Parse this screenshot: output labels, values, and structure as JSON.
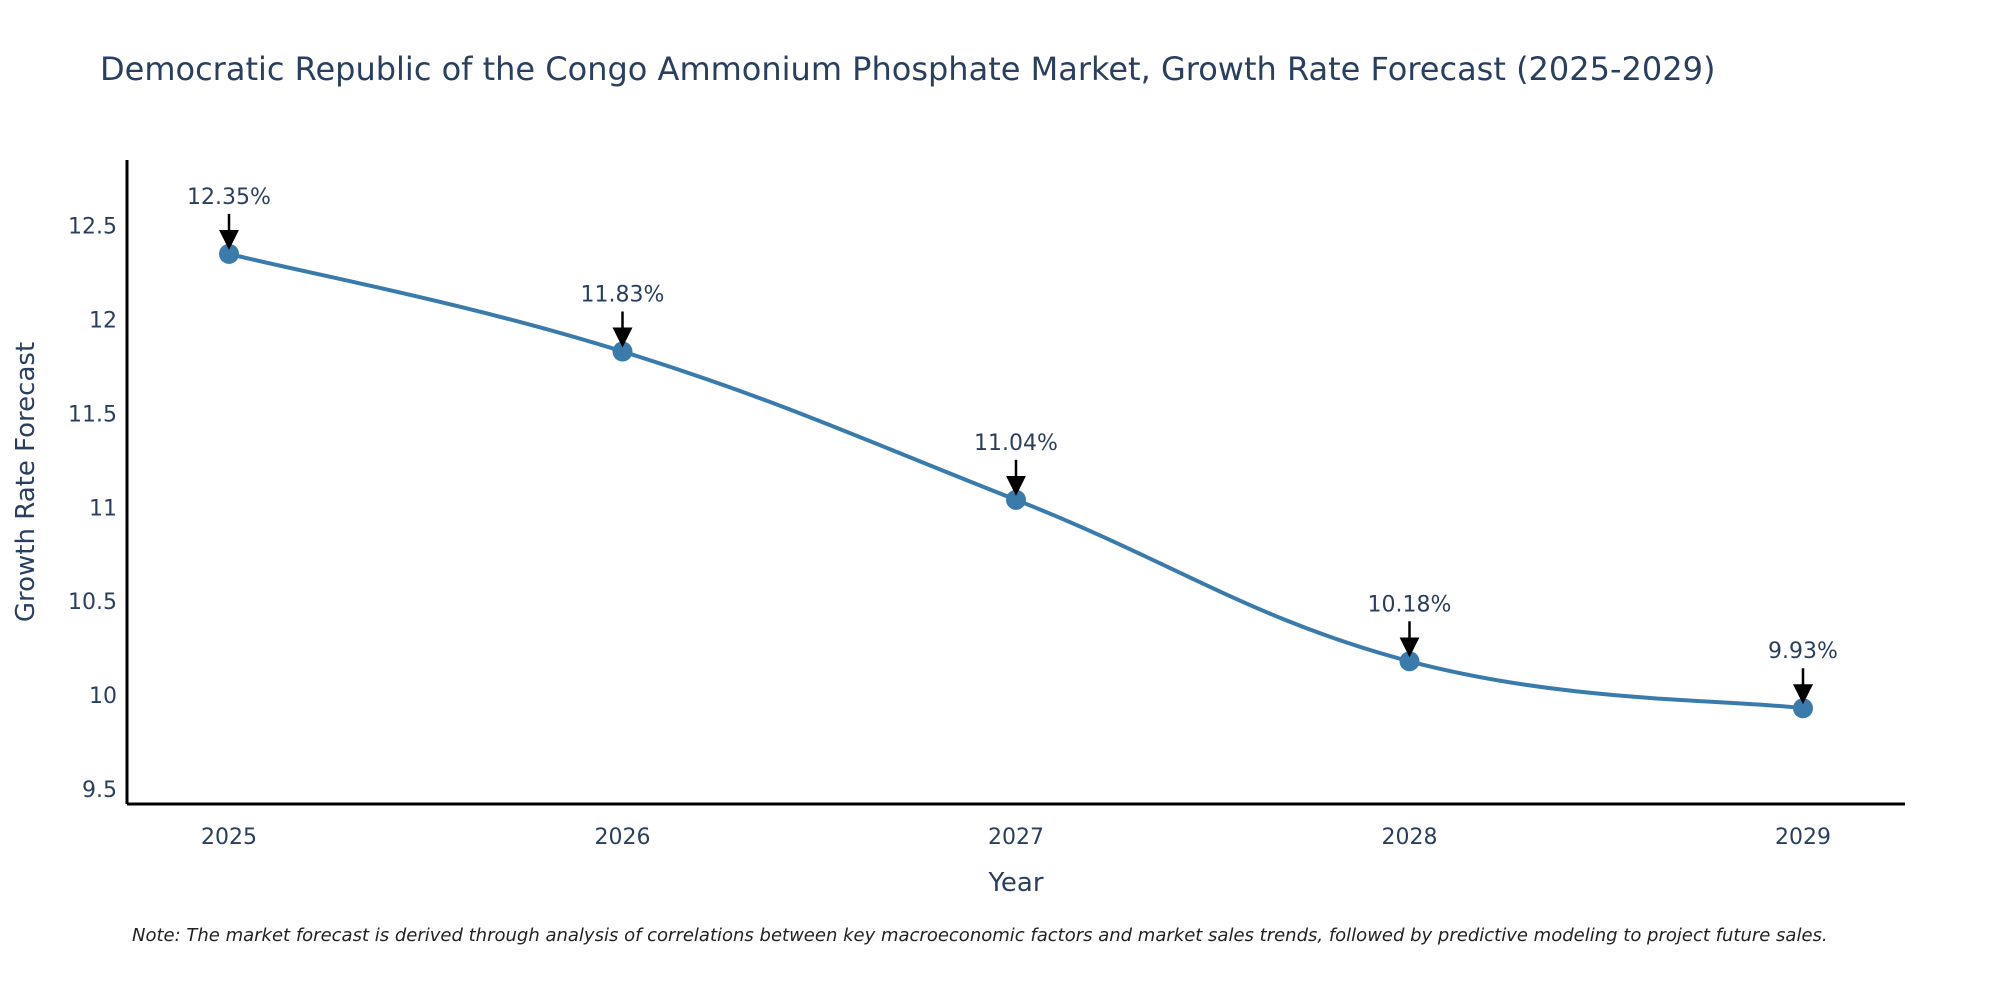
{
  "chart_data": {
    "type": "line",
    "title": "Democratic Republic of the Congo Ammonium Phosphate Market, Growth Rate Forecast (2025-2029)",
    "xlabel": "Year",
    "ylabel": "Growth Rate Forecast",
    "categories": [
      "2025",
      "2026",
      "2027",
      "2028",
      "2029"
    ],
    "series": [
      {
        "name": "Growth Rate Forecast",
        "values": [
          12.35,
          11.83,
          11.04,
          10.18,
          9.93
        ]
      }
    ],
    "data_labels": [
      "12.35%",
      "11.83%",
      "11.04%",
      "10.18%",
      "9.93%"
    ],
    "ylim": [
      9.42,
      12.85
    ],
    "yticks": [
      9.5,
      10,
      10.5,
      11,
      11.5,
      12,
      12.5
    ],
    "ytick_labels": [
      "9.5",
      "10",
      "10.5",
      "11",
      "11.5",
      "12",
      "12.5"
    ],
    "grid": false,
    "line_color": "#3a7bab",
    "marker_color": "#3a7bab",
    "note": "Note: The market forecast is derived through analysis of correlations between key macroeconomic factors and market sales trends, followed by predictive modeling to project future sales."
  }
}
